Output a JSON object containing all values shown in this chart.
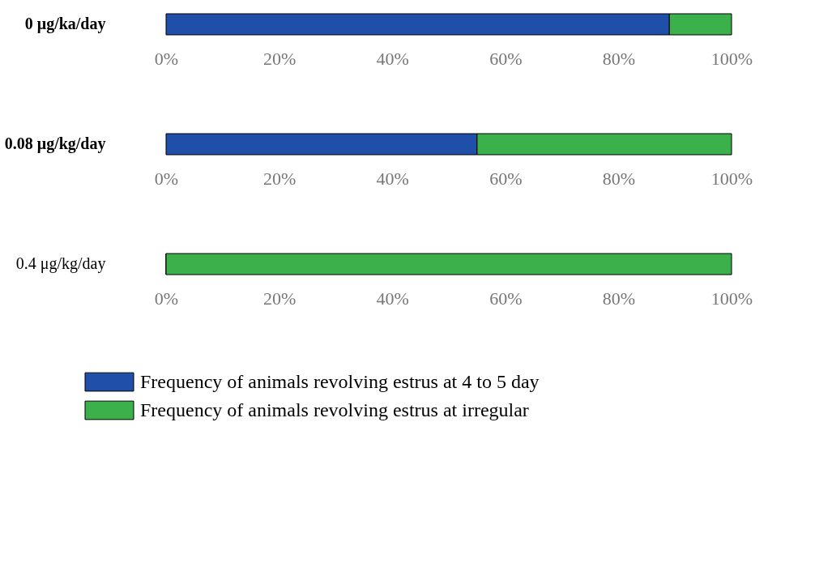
{
  "chart_data": [
    {
      "type": "bar",
      "orientation": "horizontal",
      "stacked": true,
      "categories": [
        "0 μg/ka/day"
      ],
      "xlim": [
        0,
        100
      ],
      "xticks": [
        {
          "value": 0,
          "label": "0%"
        },
        {
          "value": 20,
          "label": "20%"
        },
        {
          "value": 40,
          "label": "40%"
        },
        {
          "value": 60,
          "label": "60%"
        },
        {
          "value": 80,
          "label": "80%"
        },
        {
          "value": 100,
          "label": "100%"
        }
      ],
      "legend": "bottom",
      "series": [
        {
          "name": "Frequency of animals revolving estrus at 4 to 5 day",
          "color": "#1f4fa8",
          "values": [
            89
          ]
        },
        {
          "name": "Frequency of animals revolving estrus at irregular",
          "color": "#3cb04a",
          "values": [
            11
          ]
        }
      ]
    },
    {
      "type": "bar",
      "orientation": "horizontal",
      "stacked": true,
      "categories": [
        "0.08 μg/kg/day"
      ],
      "xlim": [
        0,
        100
      ],
      "xticks": [
        {
          "value": 0,
          "label": "0%"
        },
        {
          "value": 20,
          "label": "20%"
        },
        {
          "value": 40,
          "label": "40%"
        },
        {
          "value": 60,
          "label": "60%"
        },
        {
          "value": 80,
          "label": "80%"
        },
        {
          "value": 100,
          "label": "100%"
        }
      ],
      "series": [
        {
          "color": "#1f4fa8",
          "values": [
            55
          ]
        },
        {
          "color": "#3cb04a",
          "values": [
            45
          ]
        }
      ]
    },
    {
      "type": "bar",
      "orientation": "horizontal",
      "stacked": true,
      "categories": [
        "0.4 μg/kg/day"
      ],
      "xlim": [
        0,
        100
      ],
      "xticks": [
        {
          "value": 0,
          "label": "0%"
        },
        {
          "value": 20,
          "label": "20%"
        },
        {
          "value": 40,
          "label": "40%"
        },
        {
          "value": 60,
          "label": "60%"
        },
        {
          "value": 80,
          "label": "80%"
        },
        {
          "value": 100,
          "label": "100%"
        }
      ],
      "series": [
        {
          "color": "#1f4fa8",
          "values": [
            0
          ]
        },
        {
          "color": "#3cb04a",
          "values": [
            100
          ]
        }
      ]
    }
  ]
}
